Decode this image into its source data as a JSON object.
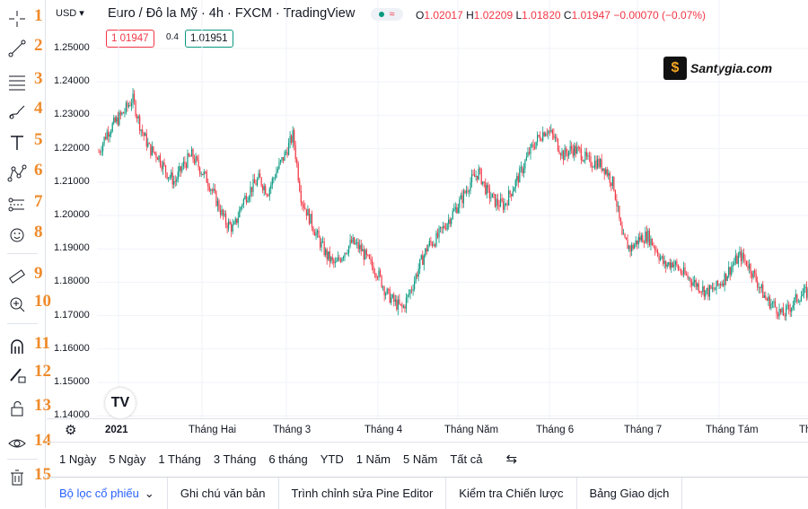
{
  "toolbar": {
    "tools": [
      {
        "num": "1",
        "icon": "crosshair-icon"
      },
      {
        "num": "2",
        "icon": "trend-line-icon"
      },
      {
        "num": "3",
        "icon": "fib-lines-icon"
      },
      {
        "num": "4",
        "icon": "brush-icon"
      },
      {
        "num": "5",
        "icon": "text-icon"
      },
      {
        "num": "6",
        "icon": "pattern-icon"
      },
      {
        "num": "7",
        "icon": "forecast-icon"
      },
      {
        "num": "8",
        "icon": "emoji-icon"
      },
      {
        "num": "9",
        "icon": "ruler-icon"
      },
      {
        "num": "10",
        "icon": "zoom-in-icon"
      },
      {
        "num": "11",
        "icon": "magnet-icon"
      },
      {
        "num": "12",
        "icon": "lock-drawing-icon"
      },
      {
        "num": "13",
        "icon": "unlock-icon"
      },
      {
        "num": "14",
        "icon": "eye-icon"
      },
      {
        "num": "15",
        "icon": "trash-icon"
      }
    ]
  },
  "header": {
    "currency": "USD",
    "symbol": "Euro / Đô la Mỹ · 4h · FXCM · TradingView",
    "status_icon": "≈",
    "ohlc": {
      "O": "1.02017",
      "H": "1.02209",
      "L": "1.01820",
      "C": "1.01947",
      "change": "−0.00070 (−0.07%)"
    },
    "bid": "1.01947",
    "spread": "0.4",
    "ask": "1.01951"
  },
  "watermark": {
    "logo_text": "$",
    "site": "Santygia.com"
  },
  "tv_logo": "TV",
  "chart_data": {
    "type": "candlestick",
    "y_ticks": [
      "1.25000",
      "1.24000",
      "1.23000",
      "1.22000",
      "1.21000",
      "1.20000",
      "1.19000",
      "1.18000",
      "1.17000",
      "1.16000",
      "1.15000",
      "1.14000"
    ],
    "ylim": [
      1.14,
      1.255
    ],
    "x_ticks": [
      "2021",
      "Tháng Hai",
      "Tháng 3",
      "Tháng 4",
      "Tháng Năm",
      "Tháng 6",
      "Tháng 7",
      "Tháng Tám",
      "Th"
    ],
    "path": [
      1.219,
      1.225,
      1.228,
      1.231,
      1.235,
      1.226,
      1.22,
      1.218,
      1.213,
      1.21,
      1.215,
      1.218,
      1.214,
      1.21,
      1.204,
      1.198,
      1.196,
      1.204,
      1.208,
      1.211,
      1.207,
      1.213,
      1.218,
      1.224,
      1.205,
      1.199,
      1.193,
      1.188,
      1.185,
      1.189,
      1.192,
      1.19,
      1.186,
      1.183,
      1.177,
      1.174,
      1.172,
      1.178,
      1.185,
      1.191,
      1.193,
      1.197,
      1.201,
      1.205,
      1.21,
      1.213,
      1.207,
      1.204,
      1.203,
      1.208,
      1.213,
      1.219,
      1.223,
      1.226,
      1.223,
      1.218,
      1.22,
      1.219,
      1.216,
      1.216,
      1.214,
      1.209,
      1.193,
      1.19,
      1.193,
      1.194,
      1.19,
      1.185,
      1.186,
      1.183,
      1.181,
      1.179,
      1.177,
      1.178,
      1.181,
      1.185,
      1.188,
      1.185,
      1.18,
      1.175,
      1.173,
      1.17,
      1.173,
      1.176,
      1.177
    ],
    "colors": {
      "up": "#089981",
      "down": "#f23645"
    }
  },
  "range_bar": {
    "items": [
      "1 Ngày",
      "5 Ngày",
      "1 Tháng",
      "3 Tháng",
      "6 tháng",
      "YTD",
      "1 Năm",
      "5 Năm",
      "Tất cả"
    ]
  },
  "panel_tabs": [
    "Bộ lọc cổ phiếu",
    "Ghi chú văn bản",
    "Trình chỉnh sửa Pine Editor",
    "Kiểm tra Chiến lược",
    "Bảng Giao dịch"
  ]
}
